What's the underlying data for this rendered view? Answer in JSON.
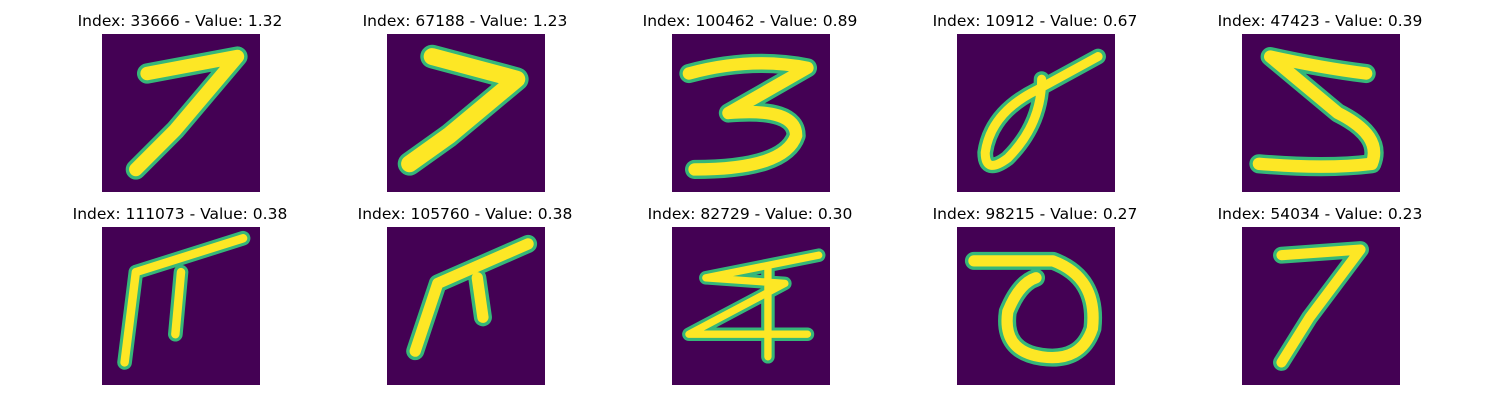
{
  "panels": [
    {
      "title": "Index: 33666 - Value: 1.32",
      "glyph": "digit-7-icon"
    },
    {
      "title": "Index: 67188 - Value: 1.23",
      "glyph": "digit-7-icon"
    },
    {
      "title": "Index: 100462 - Value: 0.89",
      "glyph": "digit-3-icon"
    },
    {
      "title": "Index: 10912 - Value: 0.67",
      "glyph": "digit-0-icon"
    },
    {
      "title": "Index: 47423 - Value: 0.39",
      "glyph": "digit-5-icon"
    },
    {
      "title": "Index: 111073 - Value: 0.38",
      "glyph": "digit-7-icon"
    },
    {
      "title": "Index: 105760 - Value: 0.38",
      "glyph": "digit-7-icon"
    },
    {
      "title": "Index: 82729 - Value: 0.30",
      "glyph": "digit-2-icon"
    },
    {
      "title": "Index: 98215 - Value: 0.27",
      "glyph": "digit-0-icon"
    },
    {
      "title": "Index: 54034 - Value: 0.23",
      "glyph": "digit-7-icon"
    }
  ],
  "colors": {
    "background": "#440154",
    "stroke_core": "#fde725",
    "stroke_edge": "#35b779"
  }
}
